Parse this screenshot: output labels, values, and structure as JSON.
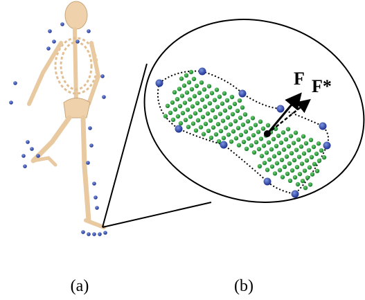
{
  "labels": {
    "force": "F",
    "force_target": "F*"
  },
  "captions": [
    "(a)",
    "(b)"
  ]
}
